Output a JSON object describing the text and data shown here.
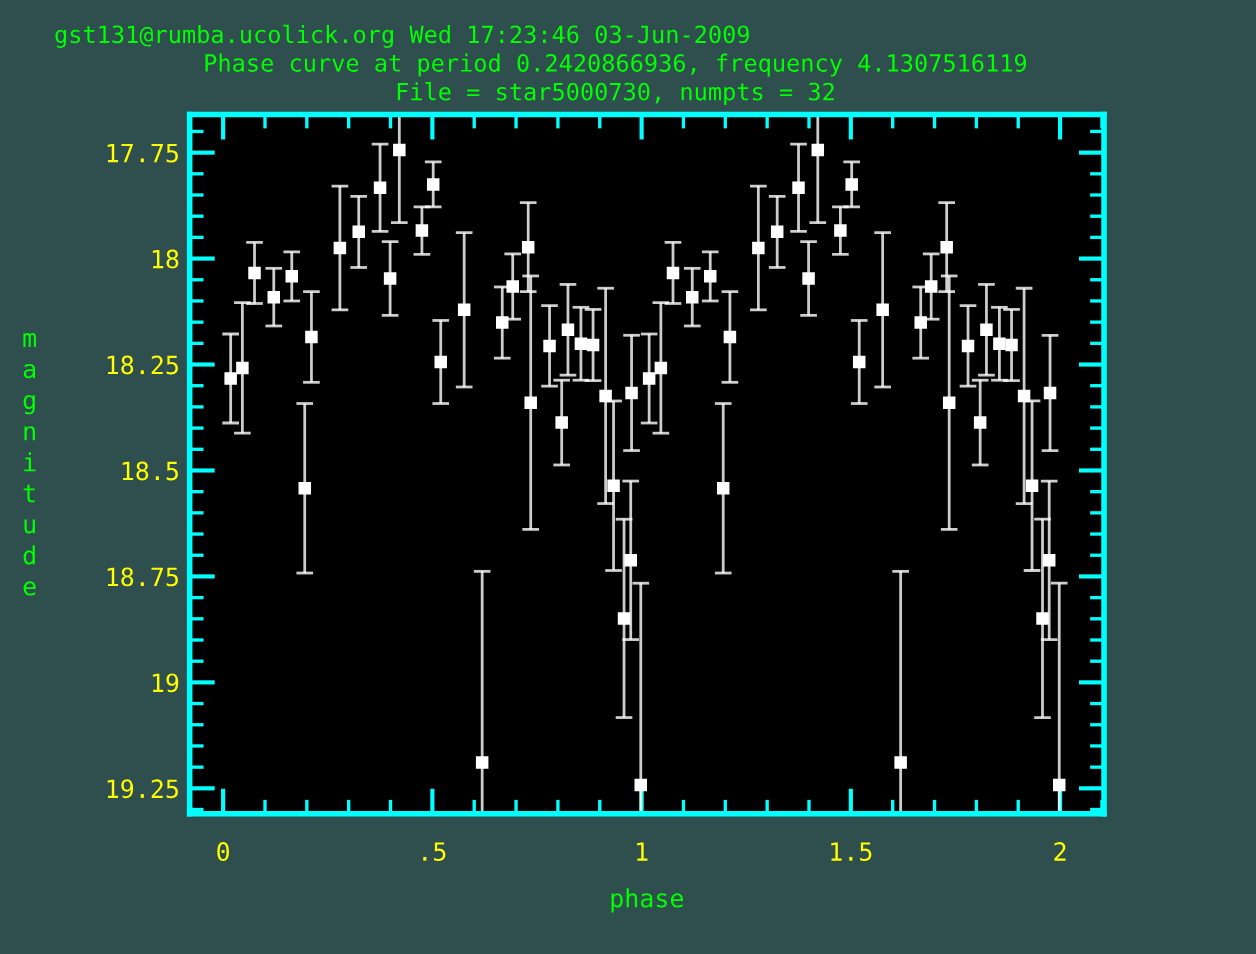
{
  "chart_data": {
    "type": "scatter",
    "title": "Phase curve at period 0.2420866936, frequency 4.1307516119",
    "subtitle": "File = star5000730, numpts = 32",
    "annotations": [
      "gst131@rumba.ucolick.org Wed 17:23:46 03-Jun-2009"
    ],
    "xlabel": "phase",
    "ylabel": "magnitude",
    "x": [
      0.018,
      0.046,
      0.075,
      0.121,
      0.164,
      0.195,
      0.211,
      0.279,
      0.324,
      0.375,
      0.399,
      0.421,
      0.475,
      0.502,
      0.52,
      0.576,
      0.619,
      0.667,
      0.692,
      0.729,
      0.735,
      0.78,
      0.809,
      0.824,
      0.855,
      0.884,
      0.914,
      0.933,
      0.958,
      0.974,
      0.976,
      0.998,
      1.018,
      1.046,
      1.075,
      1.121,
      1.164,
      1.195,
      1.211,
      1.279,
      1.324,
      1.375,
      1.399,
      1.421,
      1.475,
      1.502,
      1.52,
      1.576,
      1.619,
      1.667,
      1.692,
      1.729,
      1.735,
      1.78,
      1.809,
      1.824,
      1.855,
      1.884,
      1.914,
      1.933,
      1.958,
      1.974,
      1.976,
      1.998
    ],
    "series": [
      {
        "color": "#ffffff",
        "values": [
          18.283,
          18.258,
          18.034,
          18.091,
          18.042,
          18.542,
          18.185,
          17.975,
          17.937,
          17.833,
          18.047,
          17.744,
          17.934,
          17.825,
          18.244,
          18.121,
          19.189,
          18.151,
          18.066,
          17.973,
          18.34,
          18.206,
          18.387,
          18.168,
          18.201,
          18.204,
          18.324,
          18.536,
          18.849,
          18.712,
          18.317,
          19.242,
          18.283,
          18.258,
          18.034,
          18.091,
          18.042,
          18.542,
          18.185,
          17.975,
          17.937,
          17.833,
          18.047,
          17.744,
          17.934,
          17.825,
          18.244,
          18.121,
          19.189,
          18.151,
          18.066,
          17.973,
          18.34,
          18.206,
          18.387,
          18.168,
          18.201,
          18.204,
          18.324,
          18.536,
          18.849,
          18.712,
          18.317,
          19.242
        ],
        "errors": [
          0.105,
          0.154,
          0.072,
          0.068,
          0.058,
          0.2,
          0.107,
          0.146,
          0.084,
          0.103,
          0.087,
          [
            17.66,
            17.915
          ],
          0.056,
          0.053,
          0.098,
          0.182,
          [
            18.738,
            19.31
          ],
          0.084,
          0.077,
          0.105,
          0.299,
          0.095,
          0.1,
          0.107,
          0.086,
          0.084,
          0.254,
          0.2,
          0.234,
          0.187,
          0.136,
          [
            18.766,
            19.31
          ],
          0.105,
          0.154,
          0.072,
          0.068,
          0.058,
          0.2,
          0.107,
          0.146,
          0.084,
          0.103,
          0.087,
          [
            17.66,
            17.915
          ],
          0.056,
          0.053,
          0.098,
          0.182,
          [
            18.738,
            19.31
          ],
          0.084,
          0.077,
          0.105,
          0.299,
          0.095,
          0.1,
          0.107,
          0.086,
          0.084,
          0.254,
          0.2,
          0.234,
          0.187,
          0.136,
          [
            18.766,
            19.31
          ]
        ]
      }
    ],
    "marker": "square",
    "grid": false,
    "xlim": [
      -0.08,
      2.105
    ],
    "xticks": [
      0,
      {
        "value": 0.5,
        "label": ".5"
      },
      1,
      1.5,
      2
    ],
    "ylim": [
      19.31,
      17.66
    ],
    "yticks": [
      17.75,
      18,
      18.25,
      18.5,
      18.75,
      19,
      19.25
    ]
  }
}
